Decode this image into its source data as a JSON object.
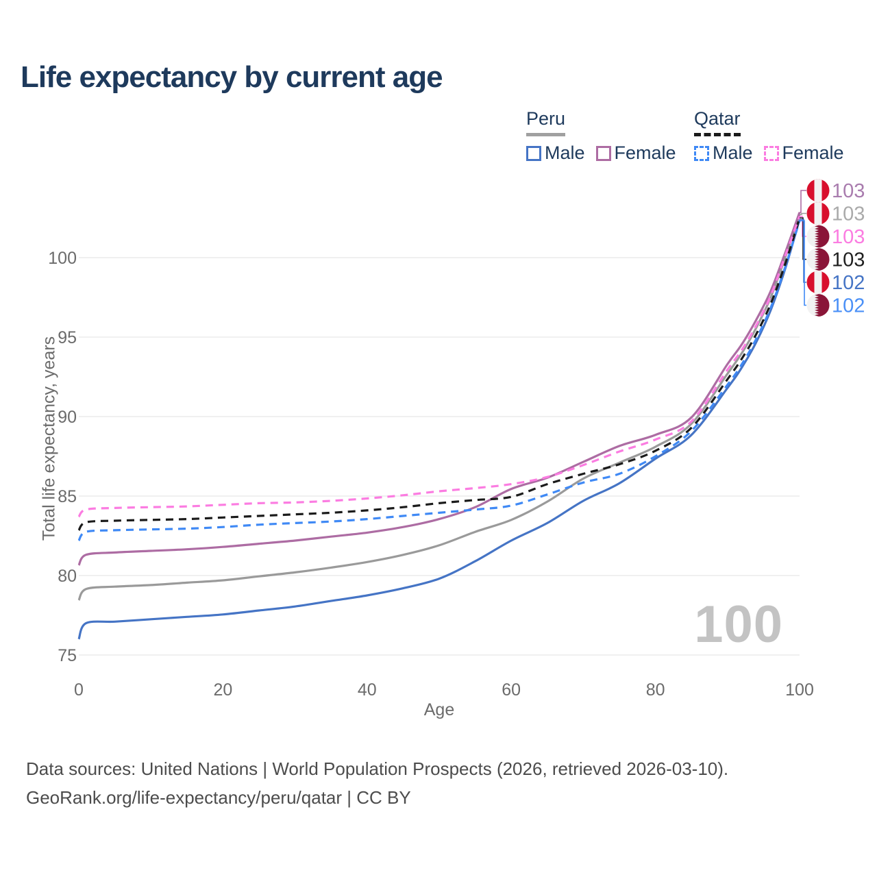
{
  "title": "Life expectancy by current age",
  "watermark": "100",
  "legend": {
    "groups": [
      {
        "label": "Peru",
        "underline": "solid",
        "underline_color": "#a0a0a0",
        "items": [
          {
            "label": "Male",
            "color": "#4574c5",
            "dash": false
          },
          {
            "label": "Female",
            "color": "#ad6ca3",
            "dash": false
          }
        ]
      },
      {
        "label": "Qatar",
        "underline": "dashed",
        "underline_color": "#1a1a1a",
        "items": [
          {
            "label": "Male",
            "color": "#3f89f5",
            "dash": true
          },
          {
            "label": "Female",
            "color": "#fb7ce1",
            "dash": true
          }
        ]
      }
    ]
  },
  "footer": {
    "line1": "Data sources: United Nations | World Population Prospects (2026, retrieved 2026-03-10).",
    "line2": "GeoRank.org/life-expectancy/peru/qatar | CC BY"
  },
  "chart_data": {
    "type": "line",
    "title": "Life expectancy by current age",
    "xlabel": "Age",
    "ylabel": "Total life expectancy, years",
    "xlim": [
      0,
      100
    ],
    "ylim": [
      75,
      100
    ],
    "x_ticks": [
      0,
      20,
      40,
      60,
      80,
      100
    ],
    "y_ticks": [
      75,
      80,
      85,
      90,
      95,
      100
    ],
    "grid": "horizontal",
    "x": [
      0,
      1,
      5,
      10,
      15,
      20,
      25,
      30,
      35,
      40,
      45,
      50,
      55,
      60,
      65,
      70,
      75,
      80,
      85,
      90,
      92,
      94,
      96,
      98,
      100
    ],
    "series": [
      {
        "name": "Peru Male",
        "color": "#4574c5",
        "dash": false,
        "values": [
          76.0,
          77.0,
          77.1,
          77.25,
          77.4,
          77.55,
          77.8,
          78.05,
          78.4,
          78.75,
          79.2,
          79.8,
          80.9,
          82.2,
          83.3,
          84.7,
          85.8,
          87.35,
          88.85,
          91.8,
          93.1,
          94.7,
          96.7,
          99.3,
          102.4
        ]
      },
      {
        "name": "Peru Both sexes",
        "color": "#9a9a9a",
        "dash": false,
        "values": [
          78.45,
          79.15,
          79.3,
          79.4,
          79.55,
          79.7,
          79.95,
          80.2,
          80.5,
          80.85,
          81.3,
          81.9,
          82.75,
          83.5,
          84.65,
          86.1,
          87.1,
          88.1,
          89.55,
          92.7,
          94.0,
          95.6,
          97.5,
          100.0,
          102.72
        ]
      },
      {
        "name": "Peru Female",
        "color": "#ad6ca3",
        "dash": false,
        "values": [
          80.65,
          81.3,
          81.45,
          81.55,
          81.65,
          81.8,
          82.0,
          82.2,
          82.45,
          82.7,
          83.05,
          83.55,
          84.3,
          85.45,
          86.15,
          87.15,
          88.15,
          88.85,
          89.95,
          93.3,
          94.55,
          96.1,
          97.9,
          100.3,
          102.85
        ]
      },
      {
        "name": "Qatar Male",
        "color": "#3f89f5",
        "dash": true,
        "values": [
          82.2,
          82.75,
          82.85,
          82.9,
          82.95,
          83.05,
          83.2,
          83.3,
          83.4,
          83.55,
          83.75,
          83.95,
          84.15,
          84.4,
          85.1,
          85.85,
          86.4,
          87.5,
          89.1,
          92.0,
          93.3,
          94.9,
          96.85,
          99.4,
          102.32
        ]
      },
      {
        "name": "Qatar Both sexes",
        "color": "#1b1b1b",
        "dash": true,
        "values": [
          82.85,
          83.35,
          83.45,
          83.5,
          83.55,
          83.65,
          83.75,
          83.85,
          83.95,
          84.1,
          84.3,
          84.55,
          84.75,
          84.95,
          85.75,
          86.4,
          87.0,
          87.85,
          89.3,
          92.35,
          93.65,
          95.2,
          97.1,
          99.6,
          102.5
        ]
      },
      {
        "name": "Qatar Female",
        "color": "#fb7ce1",
        "dash": true,
        "values": [
          83.7,
          84.15,
          84.25,
          84.3,
          84.35,
          84.45,
          84.55,
          84.6,
          84.7,
          84.85,
          85.05,
          85.3,
          85.5,
          85.75,
          86.2,
          86.95,
          87.8,
          88.55,
          89.7,
          92.95,
          94.2,
          95.75,
          97.6,
          100.1,
          102.6
        ]
      }
    ],
    "end_labels": [
      {
        "value": "103",
        "flag": "peru",
        "color": "#a97cae",
        "series": "Peru Female"
      },
      {
        "value": "103",
        "flag": "peru",
        "color": "#aaaaaa",
        "series": "Peru Both sexes"
      },
      {
        "value": "103",
        "flag": "qatar",
        "color": "#fb7ce1",
        "series": "Qatar Female"
      },
      {
        "value": "103",
        "flag": "qatar",
        "color": "#1f1f1f",
        "series": "Qatar Both sexes"
      },
      {
        "value": "102",
        "flag": "peru",
        "color": "#4574c5",
        "series": "Peru Male"
      },
      {
        "value": "102",
        "flag": "qatar",
        "color": "#4a90f7",
        "series": "Qatar Male"
      }
    ],
    "legend_position": "top-right"
  }
}
